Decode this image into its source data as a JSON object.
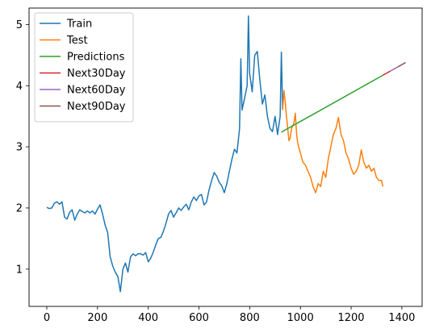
{
  "chart_data": {
    "type": "line",
    "title": "",
    "xlabel": "",
    "ylabel": "",
    "xlim": [
      -70,
      1480
    ],
    "ylim": [
      0.39,
      5.27
    ],
    "x_ticks": [
      0,
      200,
      400,
      600,
      800,
      1000,
      1200,
      1400
    ],
    "y_ticks": [
      1,
      2,
      3,
      4,
      5
    ],
    "x_tick_labels": [
      "0",
      "200",
      "400",
      "600",
      "800",
      "1000",
      "1200",
      "1400"
    ],
    "y_tick_labels": [
      "1",
      "2",
      "3",
      "4",
      "5"
    ],
    "grid": false,
    "legend_position": "top-left",
    "series": [
      {
        "name": "Train",
        "color": "#1f77b4",
        "points": [
          [
            0,
            2.01
          ],
          [
            10,
            1.99
          ],
          [
            20,
            2.0
          ],
          [
            30,
            2.08
          ],
          [
            40,
            2.1
          ],
          [
            50,
            2.06
          ],
          [
            60,
            2.1
          ],
          [
            70,
            1.85
          ],
          [
            80,
            1.82
          ],
          [
            90,
            1.93
          ],
          [
            100,
            1.97
          ],
          [
            110,
            1.8
          ],
          [
            120,
            1.9
          ],
          [
            130,
            1.97
          ],
          [
            140,
            1.94
          ],
          [
            150,
            1.92
          ],
          [
            160,
            1.95
          ],
          [
            170,
            1.92
          ],
          [
            180,
            1.95
          ],
          [
            190,
            1.9
          ],
          [
            200,
            1.98
          ],
          [
            210,
            2.05
          ],
          [
            220,
            1.9
          ],
          [
            230,
            1.72
          ],
          [
            240,
            1.6
          ],
          [
            250,
            1.2
          ],
          [
            260,
            1.05
          ],
          [
            270,
            0.95
          ],
          [
            280,
            0.88
          ],
          [
            290,
            0.63
          ],
          [
            300,
            1.0
          ],
          [
            310,
            1.1
          ],
          [
            320,
            0.95
          ],
          [
            330,
            1.2
          ],
          [
            340,
            1.25
          ],
          [
            350,
            1.22
          ],
          [
            360,
            1.25
          ],
          [
            370,
            1.25
          ],
          [
            380,
            1.23
          ],
          [
            390,
            1.27
          ],
          [
            400,
            1.12
          ],
          [
            410,
            1.18
          ],
          [
            420,
            1.28
          ],
          [
            430,
            1.4
          ],
          [
            440,
            1.5
          ],
          [
            450,
            1.52
          ],
          [
            460,
            1.62
          ],
          [
            470,
            1.75
          ],
          [
            480,
            1.9
          ],
          [
            490,
            1.96
          ],
          [
            500,
            1.85
          ],
          [
            510,
            1.92
          ],
          [
            520,
            2.0
          ],
          [
            530,
            1.96
          ],
          [
            540,
            2.02
          ],
          [
            550,
            2.06
          ],
          [
            560,
            1.97
          ],
          [
            570,
            2.1
          ],
          [
            580,
            2.18
          ],
          [
            590,
            2.12
          ],
          [
            600,
            2.2
          ],
          [
            610,
            2.22
          ],
          [
            620,
            2.05
          ],
          [
            630,
            2.1
          ],
          [
            640,
            2.3
          ],
          [
            650,
            2.45
          ],
          [
            660,
            2.58
          ],
          [
            670,
            2.52
          ],
          [
            680,
            2.42
          ],
          [
            690,
            2.36
          ],
          [
            700,
            2.25
          ],
          [
            710,
            2.4
          ],
          [
            720,
            2.6
          ],
          [
            730,
            2.8
          ],
          [
            740,
            2.96
          ],
          [
            750,
            2.9
          ],
          [
            760,
            3.3
          ],
          [
            765,
            4.44
          ],
          [
            770,
            3.6
          ],
          [
            780,
            3.8
          ],
          [
            790,
            4.0
          ],
          [
            795,
            5.14
          ],
          [
            800,
            4.2
          ],
          [
            810,
            3.9
          ],
          [
            820,
            4.5
          ],
          [
            830,
            4.56
          ],
          [
            840,
            4.1
          ],
          [
            850,
            3.7
          ],
          [
            860,
            3.85
          ],
          [
            870,
            3.5
          ],
          [
            880,
            3.3
          ],
          [
            890,
            3.25
          ],
          [
            900,
            3.5
          ],
          [
            910,
            3.2
          ],
          [
            920,
            3.5
          ],
          [
            925,
            4.55
          ],
          [
            930,
            3.6
          ]
        ]
      },
      {
        "name": "Test",
        "color": "#ff7f0e",
        "points": [
          [
            930,
            3.6
          ],
          [
            935,
            3.92
          ],
          [
            940,
            3.75
          ],
          [
            945,
            3.5
          ],
          [
            950,
            3.3
          ],
          [
            955,
            3.1
          ],
          [
            960,
            3.15
          ],
          [
            965,
            3.3
          ],
          [
            970,
            3.35
          ],
          [
            975,
            3.4
          ],
          [
            980,
            3.55
          ],
          [
            985,
            3.2
          ],
          [
            990,
            3.05
          ],
          [
            1000,
            2.9
          ],
          [
            1010,
            2.75
          ],
          [
            1020,
            2.7
          ],
          [
            1030,
            2.6
          ],
          [
            1040,
            2.5
          ],
          [
            1050,
            2.35
          ],
          [
            1060,
            2.25
          ],
          [
            1070,
            2.4
          ],
          [
            1080,
            2.35
          ],
          [
            1090,
            2.6
          ],
          [
            1100,
            2.5
          ],
          [
            1110,
            2.8
          ],
          [
            1120,
            3.0
          ],
          [
            1130,
            3.2
          ],
          [
            1140,
            3.3
          ],
          [
            1150,
            3.48
          ],
          [
            1160,
            3.2
          ],
          [
            1170,
            3.1
          ],
          [
            1180,
            2.9
          ],
          [
            1190,
            2.8
          ],
          [
            1200,
            2.65
          ],
          [
            1210,
            2.55
          ],
          [
            1220,
            2.6
          ],
          [
            1230,
            2.7
          ],
          [
            1240,
            2.95
          ],
          [
            1250,
            2.75
          ],
          [
            1260,
            2.65
          ],
          [
            1270,
            2.7
          ],
          [
            1280,
            2.6
          ],
          [
            1290,
            2.65
          ],
          [
            1300,
            2.5
          ],
          [
            1310,
            2.45
          ],
          [
            1320,
            2.45
          ],
          [
            1325,
            2.35
          ]
        ]
      },
      {
        "name": "Predictions",
        "color": "#2ca02c",
        "points": [
          [
            925,
            3.24
          ],
          [
            1325,
            4.17
          ]
        ]
      },
      {
        "name": "Next30Day",
        "color": "#d62728",
        "points": [
          [
            1325,
            4.17
          ],
          [
            1355,
            4.24
          ]
        ]
      },
      {
        "name": "Next60Day",
        "color": "#9467bd",
        "points": [
          [
            1355,
            4.24
          ],
          [
            1385,
            4.31
          ]
        ]
      },
      {
        "name": "Next90Day",
        "color": "#8c564b",
        "points": [
          [
            1385,
            4.31
          ],
          [
            1415,
            4.38
          ]
        ]
      }
    ]
  }
}
